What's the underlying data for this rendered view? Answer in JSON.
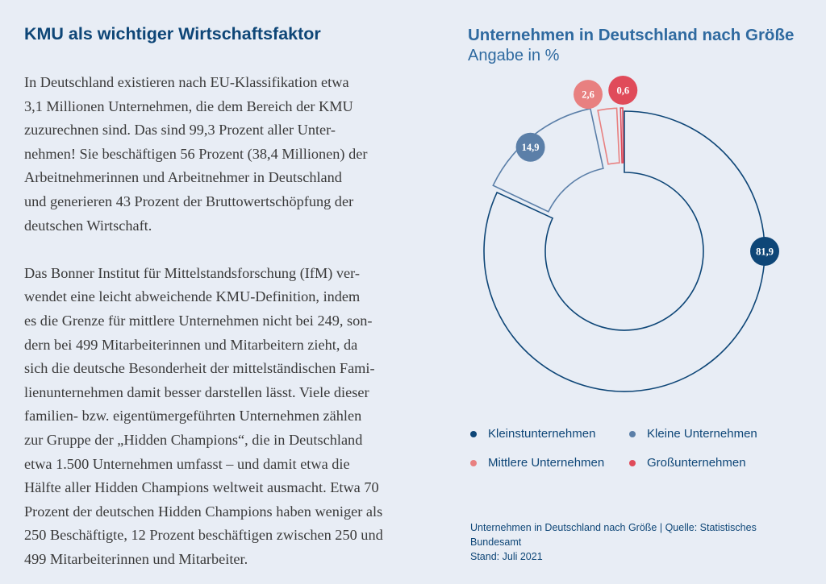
{
  "left": {
    "title": "KMU als wichtiger Wirtschaftsfaktor",
    "paragraphs": [
      [
        "In Deutschland existieren nach EU-Klassifikation etwa",
        "3,1 Millionen Unternehmen, die dem Bereich der KMU",
        "zuzurechnen sind. Das sind 99,3 Prozent aller Unter-",
        "nehmen! Sie beschäftigen 56 Prozent (38,4 Millionen) der",
        "Arbeitnehmerinnen und Arbeitnehmer in Deutschland",
        "und generieren 43 Prozent der Bruttowertschöpfung der",
        "deutschen Wirtschaft."
      ],
      [
        "Das Bonner Institut für Mittelstandsforschung (IfM) ver-",
        "wendet eine leicht abweichende KMU-Definition, indem",
        "es die Grenze für mittlere Unternehmen nicht bei 249, son-",
        "dern bei 499 Mitarbeiterinnen und Mitarbeitern zieht, da",
        "sich die deutsche Besonderheit der mittelständischen Fami-",
        "lienunternehmen damit besser darstellen lässt. Viele dieser",
        "familien- bzw. eigentümergeführten Unternehmen zählen",
        "zur Gruppe der „Hidden Champions“, die in Deutschland",
        "etwa 1.500 Unternehmen umfasst – und damit etwa die",
        "Hälfte aller Hidden Champions weltweit ausmacht. Etwa 70",
        "Prozent der deutschen Hidden Champions haben weniger als",
        "250 Beschäftigte, 12 Prozent beschäftigen zwischen 250 und",
        "499 Mitarbeiterinnen und Mitarbeiter."
      ]
    ]
  },
  "chart_data": {
    "type": "pie",
    "variant": "donut",
    "title": "Unternehmen in Deutschland nach Größe",
    "subtitle": "Angabe in %",
    "categories": [
      "Kleinstunternehmen",
      "Kleine Unternehmen",
      "Mittlere Unternehmen",
      "Großunternehmen"
    ],
    "values": [
      81.9,
      14.9,
      2.6,
      0.6
    ],
    "value_labels": [
      "81,9",
      "14,9",
      "2,6",
      "0,6"
    ],
    "colors": [
      "#0e4677",
      "#5b7fa8",
      "#e88080",
      "#e04b5a"
    ],
    "legend_position": "bottom",
    "source": "Unternehmen in Deutschland nach Größe | Quelle: Statistisches Bundesamt",
    "date": "Stand: Juli 2021"
  }
}
